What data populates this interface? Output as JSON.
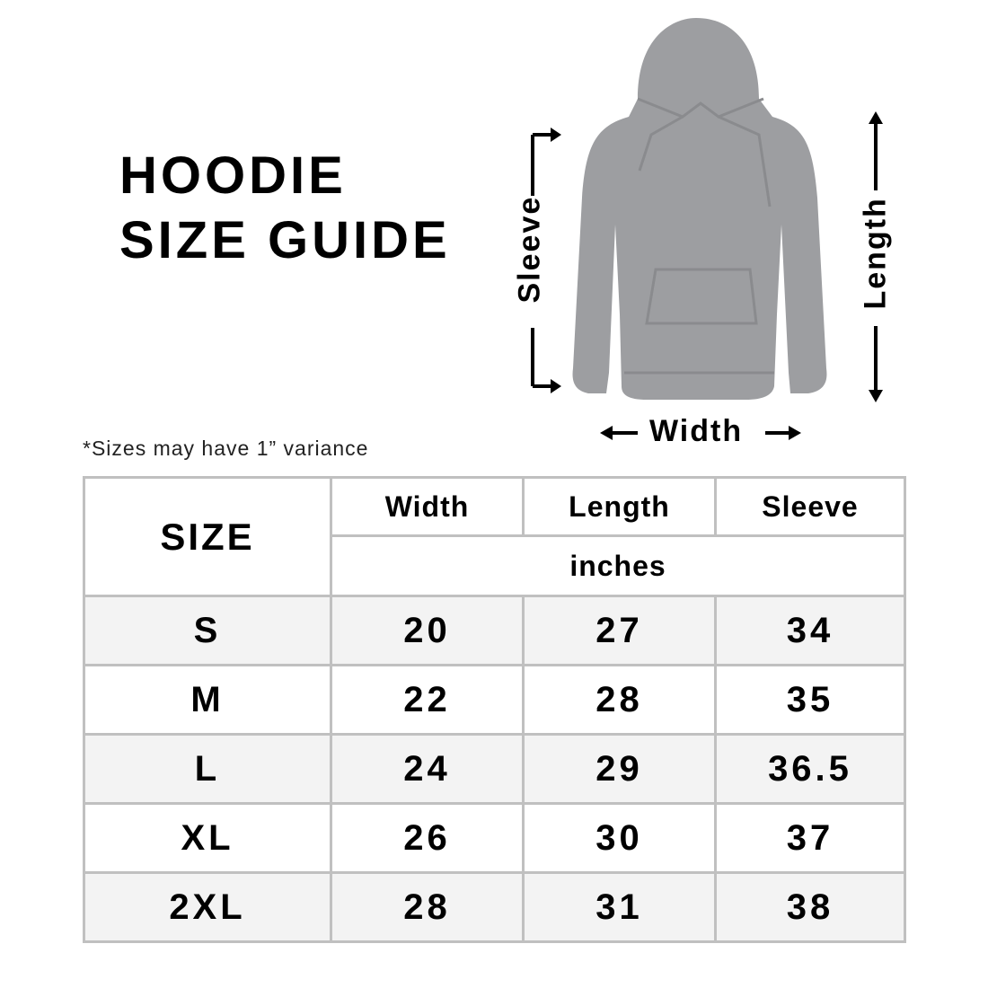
{
  "title": {
    "line1": "HOODIE",
    "line2": "SIZE GUIDE"
  },
  "diagram": {
    "labels": {
      "sleeve": "Sleeve",
      "length": "Length",
      "width": "Width"
    },
    "garment_color": "#9d9ea1"
  },
  "note": "*Sizes may have 1” variance",
  "table": {
    "size_header": "SIZE",
    "columns": [
      "Width",
      "Length",
      "Sleeve"
    ],
    "unit": "inches",
    "rows": [
      {
        "size": "S",
        "width": "20",
        "length": "27",
        "sleeve": "34"
      },
      {
        "size": "M",
        "width": "22",
        "length": "28",
        "sleeve": "35"
      },
      {
        "size": "L",
        "width": "24",
        "length": "29",
        "sleeve": "36.5"
      },
      {
        "size": "XL",
        "width": "26",
        "length": "30",
        "sleeve": "37"
      },
      {
        "size": "2XL",
        "width": "28",
        "length": "31",
        "sleeve": "38"
      }
    ],
    "border_color": "#c0c0c0",
    "stripe_color": "#f3f3f3"
  }
}
